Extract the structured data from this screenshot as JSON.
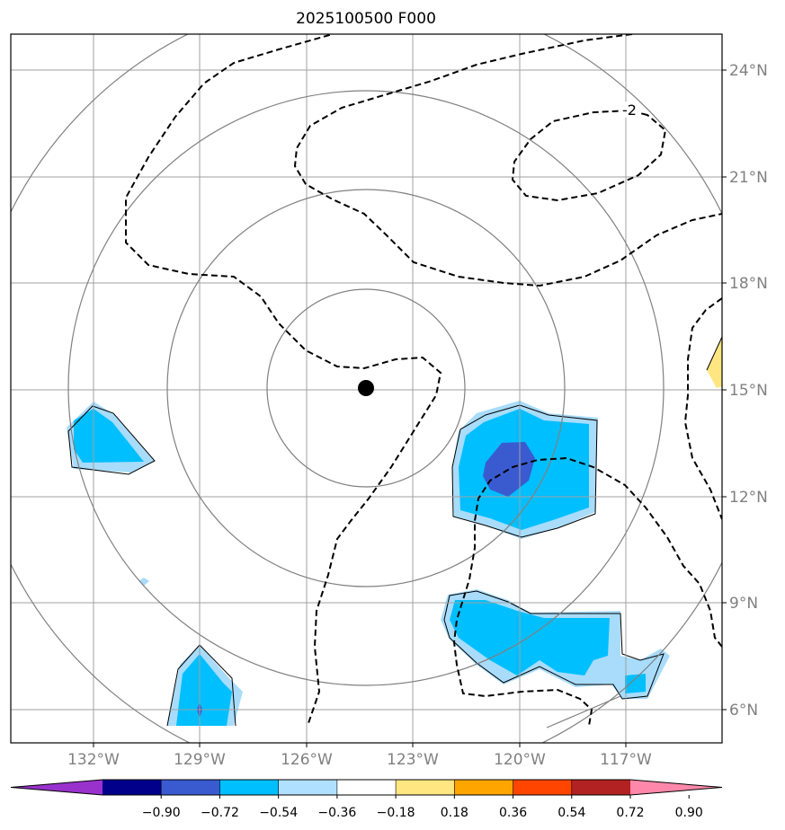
{
  "title": "2025100500 F000",
  "lon_labels": [
    "132°W",
    "129°W",
    "126°W",
    "123°W",
    "120°W",
    "117°W"
  ],
  "lat_labels": [
    "24°N",
    "21°N",
    "18°N",
    "15°N",
    "12°N",
    "9°N",
    "6°N"
  ],
  "contour_label": "-2",
  "colorbar": {
    "labels": [
      "−0.90",
      "−0.72",
      "−0.54",
      "−0.36",
      "−0.18",
      "0.18",
      "0.36",
      "0.54",
      "0.72",
      "0.90"
    ],
    "colors": [
      "#9932CC",
      "#00008B",
      "#3A5BD0",
      "#00BFFF",
      "#B0E0FF",
      "#FFFFFF",
      "#FFE680",
      "#FFA500",
      "#FF4500",
      "#B22222",
      "#FF88AA"
    ]
  },
  "palette": {
    "grid": "#A0A0A0",
    "range_ring": "#808080",
    "light_blue": "#A8DCFA",
    "cyan": "#00BFFF",
    "royal_blue": "#3A5BD0",
    "yellow": "#FFE680",
    "center_marker": "#000000"
  }
}
